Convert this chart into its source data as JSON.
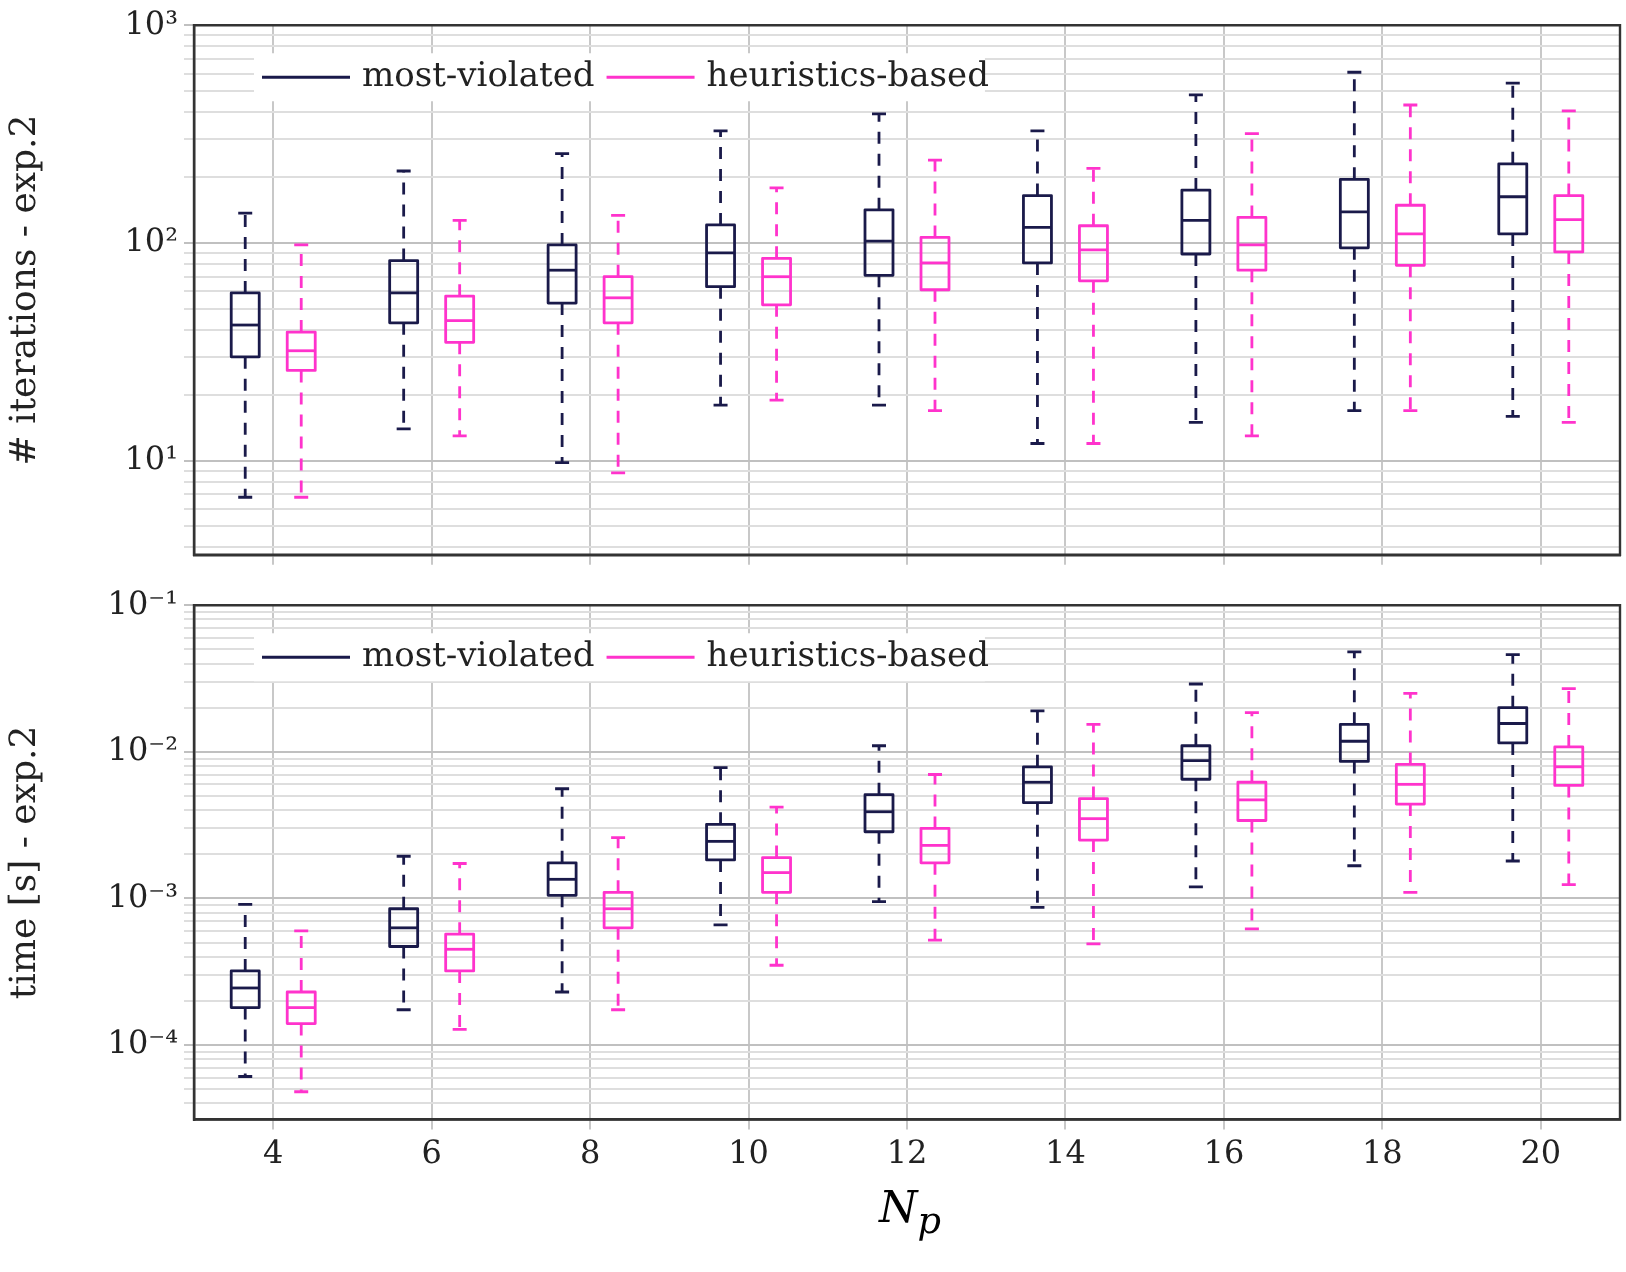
{
  "chart_data": [
    {
      "type": "box",
      "ylabel": "# iterations - exp.2",
      "categories": [
        "4",
        "6",
        "8",
        "10",
        "12",
        "14",
        "16",
        "18",
        "20"
      ],
      "log": "y",
      "ylim": [
        3.7,
        1000
      ],
      "grid": true,
      "legend": "top left",
      "tick_labels": "y",
      "yticks": [
        {
          "value": 4,
          "label": null
        },
        {
          "value": 5,
          "label": null
        },
        {
          "value": 6,
          "label": null
        },
        {
          "value": 7,
          "label": null
        },
        {
          "value": 8,
          "label": null
        },
        {
          "value": 9,
          "label": null
        },
        {
          "value": 10,
          "label": "10¹"
        },
        {
          "value": 20,
          "label": null
        },
        {
          "value": 30,
          "label": null
        },
        {
          "value": 40,
          "label": null
        },
        {
          "value": 50,
          "label": null
        },
        {
          "value": 60,
          "label": null
        },
        {
          "value": 70,
          "label": null
        },
        {
          "value": 80,
          "label": null
        },
        {
          "value": 90,
          "label": null
        },
        {
          "value": 100,
          "label": "10²"
        },
        {
          "value": 200,
          "label": null
        },
        {
          "value": 300,
          "label": null
        },
        {
          "value": 400,
          "label": null
        },
        {
          "value": 500,
          "label": null
        },
        {
          "value": 600,
          "label": null
        },
        {
          "value": 700,
          "label": null
        },
        {
          "value": 800,
          "label": null
        },
        {
          "value": 900,
          "label": null
        },
        {
          "value": 1000,
          "label": "10³"
        }
      ],
      "series": [
        {
          "name": "most-violated",
          "color": "#1a1a4a",
          "boxes": [
            {
              "low": 6.8,
              "q1": 30,
              "median": 42,
              "q3": 59,
              "high": 137
            },
            {
              "low": 14,
              "q1": 43,
              "median": 59,
              "q3": 83,
              "high": 214
            },
            {
              "low": 9.8,
              "q1": 53,
              "median": 75,
              "q3": 98,
              "high": 257
            },
            {
              "low": 18,
              "q1": 63,
              "median": 90,
              "q3": 121,
              "high": 327
            },
            {
              "low": 18,
              "q1": 71,
              "median": 102,
              "q3": 142,
              "high": 392
            },
            {
              "low": 12,
              "q1": 81,
              "median": 118,
              "q3": 165,
              "high": 327
            },
            {
              "low": 15,
              "q1": 89,
              "median": 127,
              "q3": 175,
              "high": 479
            },
            {
              "low": 17,
              "q1": 95,
              "median": 139,
              "q3": 196,
              "high": 608
            },
            {
              "low": 16,
              "q1": 110,
              "median": 163,
              "q3": 231,
              "high": 542
            }
          ]
        },
        {
          "name": "heuristics-based",
          "color": "#ff33cc",
          "boxes": [
            {
              "low": 6.8,
              "q1": 26,
              "median": 32,
              "q3": 39,
              "high": 98
            },
            {
              "low": 13,
              "q1": 35,
              "median": 44,
              "q3": 57,
              "high": 127
            },
            {
              "low": 8.8,
              "q1": 43,
              "median": 56,
              "q3": 70,
              "high": 134
            },
            {
              "low": 19,
              "q1": 52,
              "median": 70,
              "q3": 85,
              "high": 179
            },
            {
              "low": 17,
              "q1": 61,
              "median": 81,
              "q3": 106,
              "high": 240
            },
            {
              "low": 12,
              "q1": 67,
              "median": 93,
              "q3": 120,
              "high": 220
            },
            {
              "low": 13,
              "q1": 75,
              "median": 98,
              "q3": 131,
              "high": 318
            },
            {
              "low": 17,
              "q1": 79,
              "median": 110,
              "q3": 149,
              "high": 430
            },
            {
              "low": 15,
              "q1": 91,
              "median": 128,
              "q3": 165,
              "high": 404
            }
          ]
        }
      ]
    },
    {
      "type": "box",
      "ylabel": "time [s] - exp.2",
      "xlabel": "N$_{p}$",
      "categories": [
        "4",
        "6",
        "8",
        "10",
        "12",
        "14",
        "16",
        "18",
        "20"
      ],
      "log": "y",
      "ylim": [
        3.1e-05,
        0.1
      ],
      "grid": true,
      "legend": "top left",
      "yticks": [
        {
          "value": 4e-05,
          "label": null
        },
        {
          "value": 5e-05,
          "label": null
        },
        {
          "value": 6e-05,
          "label": null
        },
        {
          "value": 7e-05,
          "label": null
        },
        {
          "value": 8e-05,
          "label": null
        },
        {
          "value": 9e-05,
          "label": null
        },
        {
          "value": 0.0001,
          "label": "10⁻⁴"
        },
        {
          "value": 0.0002,
          "label": null
        },
        {
          "value": 0.0003,
          "label": null
        },
        {
          "value": 0.0004,
          "label": null
        },
        {
          "value": 0.0005,
          "label": null
        },
        {
          "value": 0.0006,
          "label": null
        },
        {
          "value": 0.0007,
          "label": null
        },
        {
          "value": 0.0008,
          "label": null
        },
        {
          "value": 0.0009,
          "label": null
        },
        {
          "value": 0.001,
          "label": "10⁻³"
        },
        {
          "value": 0.002,
          "label": null
        },
        {
          "value": 0.003,
          "label": null
        },
        {
          "value": 0.004,
          "label": null
        },
        {
          "value": 0.005,
          "label": null
        },
        {
          "value": 0.006,
          "label": null
        },
        {
          "value": 0.007,
          "label": null
        },
        {
          "value": 0.008,
          "label": null
        },
        {
          "value": 0.009,
          "label": null
        },
        {
          "value": 0.01,
          "label": "10⁻²"
        },
        {
          "value": 0.02,
          "label": null
        },
        {
          "value": 0.03,
          "label": null
        },
        {
          "value": 0.04,
          "label": null
        },
        {
          "value": 0.05,
          "label": null
        },
        {
          "value": 0.06,
          "label": null
        },
        {
          "value": 0.07,
          "label": null
        },
        {
          "value": 0.08,
          "label": null
        },
        {
          "value": 0.09,
          "label": null
        },
        {
          "value": 0.1,
          "label": "10⁻¹"
        }
      ],
      "series": [
        {
          "name": "most-violated",
          "color": "#1a1a4a",
          "boxes": [
            {
              "low": 6.1e-05,
              "q1": 0.00018,
              "median": 0.000245,
              "q3": 0.00032,
              "high": 0.00091
            },
            {
              "low": 0.000174,
              "q1": 0.00047,
              "median": 0.00063,
              "q3": 0.00085,
              "high": 0.00194
            },
            {
              "low": 0.00023,
              "q1": 0.00105,
              "median": 0.00135,
              "q3": 0.00175,
              "high": 0.0056
            },
            {
              "low": 0.00066,
              "q1": 0.00183,
              "median": 0.00245,
              "q3": 0.0032,
              "high": 0.0078
            },
            {
              "low": 0.00095,
              "q1": 0.00285,
              "median": 0.0039,
              "q3": 0.0051,
              "high": 0.011
            },
            {
              "low": 0.00087,
              "q1": 0.0045,
              "median": 0.0062,
              "q3": 0.0079,
              "high": 0.019
            },
            {
              "low": 0.0012,
              "q1": 0.0065,
              "median": 0.0087,
              "q3": 0.011,
              "high": 0.029
            },
            {
              "low": 0.00167,
              "q1": 0.0086,
              "median": 0.0118,
              "q3": 0.0154,
              "high": 0.048
            },
            {
              "low": 0.0018,
              "q1": 0.0115,
              "median": 0.0156,
              "q3": 0.02,
              "high": 0.046
            }
          ]
        },
        {
          "name": "heuristics-based",
          "color": "#ff33cc",
          "boxes": [
            {
              "low": 4.8e-05,
              "q1": 0.00014,
              "median": 0.00018,
              "q3": 0.00023,
              "high": 0.0006
            },
            {
              "low": 0.000128,
              "q1": 0.00032,
              "median": 0.00045,
              "q3": 0.00057,
              "high": 0.00173
            },
            {
              "low": 0.000174,
              "q1": 0.00063,
              "median": 0.00085,
              "q3": 0.0011,
              "high": 0.0026
            },
            {
              "low": 0.00035,
              "q1": 0.0011,
              "median": 0.0015,
              "q3": 0.0019,
              "high": 0.0042
            },
            {
              "low": 0.00052,
              "q1": 0.00175,
              "median": 0.0023,
              "q3": 0.003,
              "high": 0.007
            },
            {
              "low": 0.00049,
              "q1": 0.0025,
              "median": 0.0035,
              "q3": 0.0048,
              "high": 0.0154
            },
            {
              "low": 0.00062,
              "q1": 0.0034,
              "median": 0.0047,
              "q3": 0.0062,
              "high": 0.0185
            },
            {
              "low": 0.0011,
              "q1": 0.0044,
              "median": 0.006,
              "q3": 0.0082,
              "high": 0.025
            },
            {
              "low": 0.00124,
              "q1": 0.0059,
              "median": 0.0079,
              "q3": 0.0108,
              "high": 0.027
            }
          ]
        }
      ]
    }
  ]
}
